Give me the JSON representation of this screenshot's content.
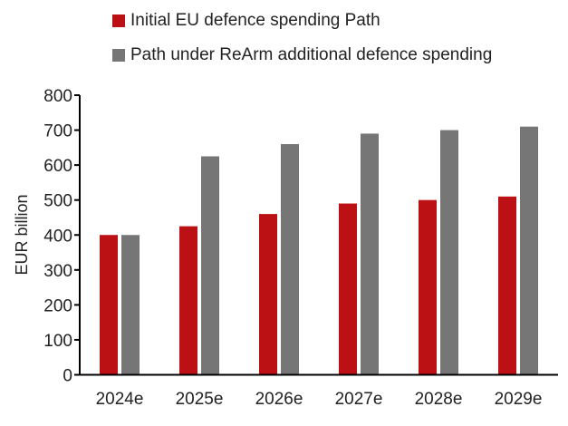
{
  "chart_data": {
    "type": "bar",
    "title": "",
    "xlabel": "",
    "ylabel": "EUR billion",
    "ylim": [
      0,
      800
    ],
    "yticks": [
      0,
      100,
      200,
      300,
      400,
      500,
      600,
      700,
      800
    ],
    "grid": false,
    "legend_position": "top",
    "categories": [
      "2024e",
      "2025e",
      "2026e",
      "2027e",
      "2028e",
      "2029e"
    ],
    "series": [
      {
        "name": "Initial EU defence spending Path",
        "color": "#bb1114",
        "values": [
          400,
          425,
          460,
          490,
          500,
          510
        ]
      },
      {
        "name": "Path under ReArm additional defence spending",
        "color": "#767676",
        "values": [
          400,
          625,
          660,
          690,
          700,
          710
        ]
      }
    ]
  }
}
